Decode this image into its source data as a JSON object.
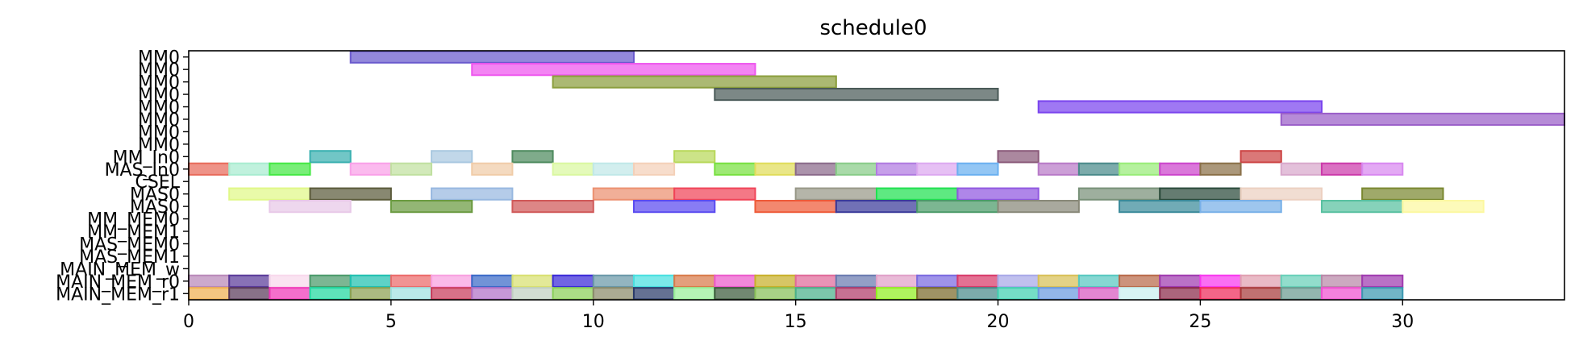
{
  "chart_data": {
    "type": "gantt",
    "title": "schedule0",
    "xlim": [
      0,
      34
    ],
    "x_ticks": [
      0,
      5,
      10,
      15,
      20,
      25,
      30
    ],
    "rows": [
      "MM0",
      "MM0",
      "MM0",
      "MM0",
      "MM0",
      "MM0",
      "MM0",
      "MM0",
      "MM_In0",
      "MAS_In0",
      "CSEL",
      "MAS0",
      "MAS0",
      "MM_MEM0",
      "MM_MEM1",
      "MAS_MEM0",
      "MAS_MEM1",
      "MAIN_MEM_w",
      "MAIN_MEM_r0",
      "MAIN_MEM_r1"
    ],
    "tasks": [
      {
        "row": 0,
        "start": 4,
        "end": 11,
        "color": "#6a5acd"
      },
      {
        "row": 1,
        "start": 7,
        "end": 14,
        "color": "#ee55ee"
      },
      {
        "row": 2,
        "start": 9,
        "end": 16,
        "color": "#8b9e3c"
      },
      {
        "row": 3,
        "start": 13,
        "end": 20,
        "color": "#4a5a58"
      },
      {
        "row": 4,
        "start": 21,
        "end": 28,
        "color": "#7a44ee"
      },
      {
        "row": 5,
        "start": 27,
        "end": 34,
        "color": "#9a5ec8"
      },
      {
        "row": 8,
        "start": 3,
        "end": 4,
        "color": "#3ab0b0"
      },
      {
        "row": 8,
        "start": 6,
        "end": 7,
        "color": "#a9c8e0"
      },
      {
        "row": 8,
        "start": 8,
        "end": 9,
        "color": "#4e8a5e"
      },
      {
        "row": 8,
        "start": 12,
        "end": 13,
        "color": "#b8d85a"
      },
      {
        "row": 8,
        "start": 20,
        "end": 21,
        "color": "#8a5a7a"
      },
      {
        "row": 8,
        "start": 26,
        "end": 27,
        "color": "#cc4444"
      },
      {
        "row": 9,
        "start": 0,
        "end": 1,
        "color": "#e86a5a"
      },
      {
        "row": 9,
        "start": 1,
        "end": 2,
        "color": "#a8ecd0"
      },
      {
        "row": 9,
        "start": 2,
        "end": 3,
        "color": "#44e844"
      },
      {
        "row": 9,
        "start": 4,
        "end": 5,
        "color": "#f9a0e8"
      },
      {
        "row": 9,
        "start": 5,
        "end": 6,
        "color": "#c0e0a0"
      },
      {
        "row": 9,
        "start": 7,
        "end": 8,
        "color": "#f0cca8"
      },
      {
        "row": 9,
        "start": 9,
        "end": 10,
        "color": "#daf8a0"
      },
      {
        "row": 9,
        "start": 10,
        "end": 11,
        "color": "#c0e8e8"
      },
      {
        "row": 9,
        "start": 11,
        "end": 12,
        "color": "#f4d0b8"
      },
      {
        "row": 9,
        "start": 13,
        "end": 14,
        "color": "#78e040"
      },
      {
        "row": 9,
        "start": 14,
        "end": 15,
        "color": "#e0dc5a"
      },
      {
        "row": 9,
        "start": 15,
        "end": 16,
        "color": "#8a6a8a"
      },
      {
        "row": 9,
        "start": 16,
        "end": 17,
        "color": "#88cc88"
      },
      {
        "row": 9,
        "start": 17,
        "end": 18,
        "color": "#b07ae0"
      },
      {
        "row": 9,
        "start": 18,
        "end": 19,
        "color": "#dca8f0"
      },
      {
        "row": 9,
        "start": 19,
        "end": 20,
        "color": "#6ab0f0"
      },
      {
        "row": 9,
        "start": 21,
        "end": 22,
        "color": "#b87ac8"
      },
      {
        "row": 9,
        "start": 22,
        "end": 23,
        "color": "#4a8a8a"
      },
      {
        "row": 9,
        "start": 23,
        "end": 24,
        "color": "#98ec78"
      },
      {
        "row": 9,
        "start": 24,
        "end": 25,
        "color": "#cc44cc"
      },
      {
        "row": 9,
        "start": 25,
        "end": 26,
        "color": "#8a7048"
      },
      {
        "row": 9,
        "start": 27,
        "end": 28,
        "color": "#d8a8cc"
      },
      {
        "row": 9,
        "start": 28,
        "end": 29,
        "color": "#cc3aaa"
      },
      {
        "row": 9,
        "start": 29,
        "end": 30,
        "color": "#d888f0"
      },
      {
        "row": 11,
        "start": 1,
        "end": 3,
        "color": "#e0f888"
      },
      {
        "row": 11,
        "start": 3,
        "end": 5,
        "color": "#5a5a3a"
      },
      {
        "row": 11,
        "start": 6,
        "end": 8,
        "color": "#98b8e0"
      },
      {
        "row": 11,
        "start": 10,
        "end": 12,
        "color": "#ec9070"
      },
      {
        "row": 11,
        "start": 12,
        "end": 14,
        "color": "#f04458"
      },
      {
        "row": 11,
        "start": 15,
        "end": 17,
        "color": "#989888"
      },
      {
        "row": 11,
        "start": 17,
        "end": 19,
        "color": "#20e050"
      },
      {
        "row": 11,
        "start": 19,
        "end": 21,
        "color": "#9058e0"
      },
      {
        "row": 11,
        "start": 22,
        "end": 24,
        "color": "#789078"
      },
      {
        "row": 11,
        "start": 24,
        "end": 26,
        "color": "#2a4a3a"
      },
      {
        "row": 11,
        "start": 26,
        "end": 28,
        "color": "#ecd0c0"
      },
      {
        "row": 11,
        "start": 29,
        "end": 31,
        "color": "#7a8830"
      },
      {
        "row": 12,
        "start": 2,
        "end": 4,
        "color": "#e8c8e8"
      },
      {
        "row": 12,
        "start": 5,
        "end": 7,
        "color": "#6a9a40"
      },
      {
        "row": 12,
        "start": 8,
        "end": 10,
        "color": "#d05858"
      },
      {
        "row": 12,
        "start": 11,
        "end": 13,
        "color": "#5a4af0"
      },
      {
        "row": 12,
        "start": 14,
        "end": 16,
        "color": "#ee5a38"
      },
      {
        "row": 12,
        "start": 16,
        "end": 18,
        "color": "#3a3a9a"
      },
      {
        "row": 12,
        "start": 18,
        "end": 20,
        "color": "#4a9a68"
      },
      {
        "row": 12,
        "start": 20,
        "end": 22,
        "color": "#888878"
      },
      {
        "row": 12,
        "start": 23,
        "end": 25,
        "color": "#3a8a9a"
      },
      {
        "row": 12,
        "start": 25,
        "end": 27,
        "color": "#78b0e8"
      },
      {
        "row": 12,
        "start": 28,
        "end": 30,
        "color": "#58c0a0"
      },
      {
        "row": 12,
        "start": 30,
        "end": 32,
        "color": "#fcf8a0"
      },
      {
        "row": 18,
        "start": 0,
        "end": 1,
        "color": "#b888b8"
      },
      {
        "row": 18,
        "start": 1,
        "end": 2,
        "color": "#5a3a9a"
      },
      {
        "row": 18,
        "start": 2,
        "end": 3,
        "color": "#f8d8ec"
      },
      {
        "row": 18,
        "start": 3,
        "end": 4,
        "color": "#4a9a6a"
      },
      {
        "row": 18,
        "start": 4,
        "end": 5,
        "color": "#20c0b0"
      },
      {
        "row": 18,
        "start": 5,
        "end": 6,
        "color": "#ec6a6a"
      },
      {
        "row": 18,
        "start": 6,
        "end": 7,
        "color": "#f8a0e0"
      },
      {
        "row": 18,
        "start": 7,
        "end": 8,
        "color": "#3a6ac8"
      },
      {
        "row": 18,
        "start": 8,
        "end": 9,
        "color": "#d8e070"
      },
      {
        "row": 18,
        "start": 9,
        "end": 10,
        "color": "#3a2ad8"
      },
      {
        "row": 18,
        "start": 10,
        "end": 11,
        "color": "#6a98a8"
      },
      {
        "row": 18,
        "start": 11,
        "end": 12,
        "color": "#48e0e0"
      },
      {
        "row": 18,
        "start": 12,
        "end": 13,
        "color": "#d87a4a"
      },
      {
        "row": 18,
        "start": 13,
        "end": 14,
        "color": "#ec5acc"
      },
      {
        "row": 18,
        "start": 14,
        "end": 15,
        "color": "#c8b02a"
      },
      {
        "row": 18,
        "start": 15,
        "end": 16,
        "color": "#e06a9a"
      },
      {
        "row": 18,
        "start": 16,
        "end": 17,
        "color": "#6a7ab0"
      },
      {
        "row": 18,
        "start": 17,
        "end": 18,
        "color": "#e0a0c8"
      },
      {
        "row": 18,
        "start": 18,
        "end": 19,
        "color": "#7a6ae0"
      },
      {
        "row": 18,
        "start": 19,
        "end": 20,
        "color": "#d83a6a"
      },
      {
        "row": 18,
        "start": 20,
        "end": 21,
        "color": "#a8a8e8"
      },
      {
        "row": 18,
        "start": 21,
        "end": 22,
        "color": "#d8c058"
      },
      {
        "row": 18,
        "start": 22,
        "end": 23,
        "color": "#58c8c0"
      },
      {
        "row": 18,
        "start": 23,
        "end": 24,
        "color": "#b86a4a"
      },
      {
        "row": 18,
        "start": 24,
        "end": 25,
        "color": "#a03ab0"
      },
      {
        "row": 18,
        "start": 25,
        "end": 26,
        "color": "#f838f0"
      },
      {
        "row": 18,
        "start": 26,
        "end": 27,
        "color": "#e0a0b0"
      },
      {
        "row": 18,
        "start": 27,
        "end": 28,
        "color": "#68d0b8"
      },
      {
        "row": 18,
        "start": 28,
        "end": 29,
        "color": "#b888a8"
      },
      {
        "row": 18,
        "start": 29,
        "end": 30,
        "color": "#a03ab0"
      },
      {
        "row": 19,
        "start": 0,
        "end": 1,
        "color": "#f0b050"
      },
      {
        "row": 19,
        "start": 1,
        "end": 2,
        "color": "#5a3a5a"
      },
      {
        "row": 19,
        "start": 2,
        "end": 3,
        "color": "#f038b8"
      },
      {
        "row": 19,
        "start": 3,
        "end": 4,
        "color": "#20d8a0"
      },
      {
        "row": 19,
        "start": 4,
        "end": 5,
        "color": "#8aa050"
      },
      {
        "row": 19,
        "start": 5,
        "end": 6,
        "color": "#a0e0e0"
      },
      {
        "row": 19,
        "start": 6,
        "end": 7,
        "color": "#c83a5a"
      },
      {
        "row": 19,
        "start": 7,
        "end": 8,
        "color": "#b070c8"
      },
      {
        "row": 19,
        "start": 8,
        "end": 9,
        "color": "#c0d0c0"
      },
      {
        "row": 19,
        "start": 9,
        "end": 10,
        "color": "#8ad058"
      },
      {
        "row": 19,
        "start": 10,
        "end": 11,
        "color": "#8a8a6a"
      },
      {
        "row": 19,
        "start": 11,
        "end": 12,
        "color": "#2a3a6a"
      },
      {
        "row": 19,
        "start": 12,
        "end": 13,
        "color": "#98f098"
      },
      {
        "row": 19,
        "start": 13,
        "end": 14,
        "color": "#3a5a3a"
      },
      {
        "row": 19,
        "start": 14,
        "end": 15,
        "color": "#88c058"
      },
      {
        "row": 19,
        "start": 15,
        "end": 16,
        "color": "#4ab08a"
      },
      {
        "row": 19,
        "start": 16,
        "end": 17,
        "color": "#b03a6a"
      },
      {
        "row": 19,
        "start": 17,
        "end": 18,
        "color": "#90f020"
      },
      {
        "row": 19,
        "start": 18,
        "end": 19,
        "color": "#7a6a2a"
      },
      {
        "row": 19,
        "start": 19,
        "end": 20,
        "color": "#4a8a8a"
      },
      {
        "row": 19,
        "start": 20,
        "end": 21,
        "color": "#40d0b0"
      },
      {
        "row": 19,
        "start": 21,
        "end": 22,
        "color": "#6a9ae0"
      },
      {
        "row": 19,
        "start": 22,
        "end": 23,
        "color": "#d858c0"
      },
      {
        "row": 19,
        "start": 23,
        "end": 24,
        "color": "#c8f0f0"
      },
      {
        "row": 19,
        "start": 24,
        "end": 25,
        "color": "#8a2a4a"
      },
      {
        "row": 19,
        "start": 25,
        "end": 26,
        "color": "#f02a5a"
      },
      {
        "row": 19,
        "start": 26,
        "end": 27,
        "color": "#a83a3a"
      },
      {
        "row": 19,
        "start": 27,
        "end": 28,
        "color": "#6a9a90"
      },
      {
        "row": 19,
        "start": 28,
        "end": 29,
        "color": "#f050d0"
      },
      {
        "row": 19,
        "start": 29,
        "end": 30,
        "color": "#3a98b0"
      }
    ]
  }
}
